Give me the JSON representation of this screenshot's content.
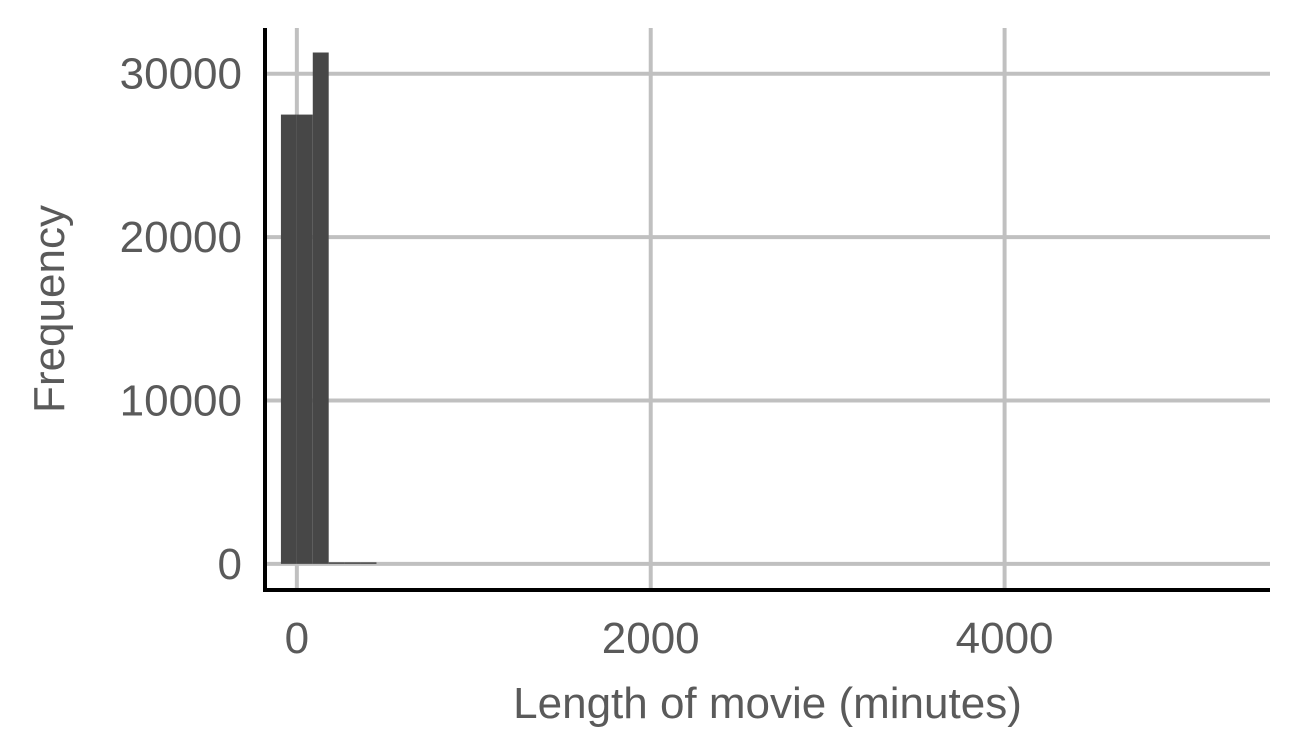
{
  "chart_data": {
    "type": "bar",
    "title": "",
    "xlabel": "Length of movie (minutes)",
    "ylabel": "Frequency",
    "xlim": [
      -180,
      5500
    ],
    "ylim": [
      -1600,
      32800
    ],
    "x_ticks": [
      0,
      2000,
      4000
    ],
    "y_ticks": [
      0,
      10000,
      20000,
      30000
    ],
    "x_tick_labels": [
      "0",
      "2000",
      "4000"
    ],
    "y_tick_labels": [
      "0",
      "10000",
      "20000",
      "30000"
    ],
    "grid": true,
    "bin_width": 90,
    "bins": [
      {
        "x0": -90,
        "x1": 0,
        "count": 27500
      },
      {
        "x0": 0,
        "x1": 90,
        "count": 27500
      },
      {
        "x0": 90,
        "x1": 180,
        "count": 31300
      },
      {
        "x0": 180,
        "x1": 270,
        "count": 40
      },
      {
        "x0": 270,
        "x1": 360,
        "count": 20
      },
      {
        "x0": 360,
        "x1": 450,
        "count": 10
      }
    ],
    "colors": {
      "bar": "#474747",
      "grid": "#c0c0c0",
      "axis": "#000000",
      "text": "#5a5a5a"
    }
  }
}
